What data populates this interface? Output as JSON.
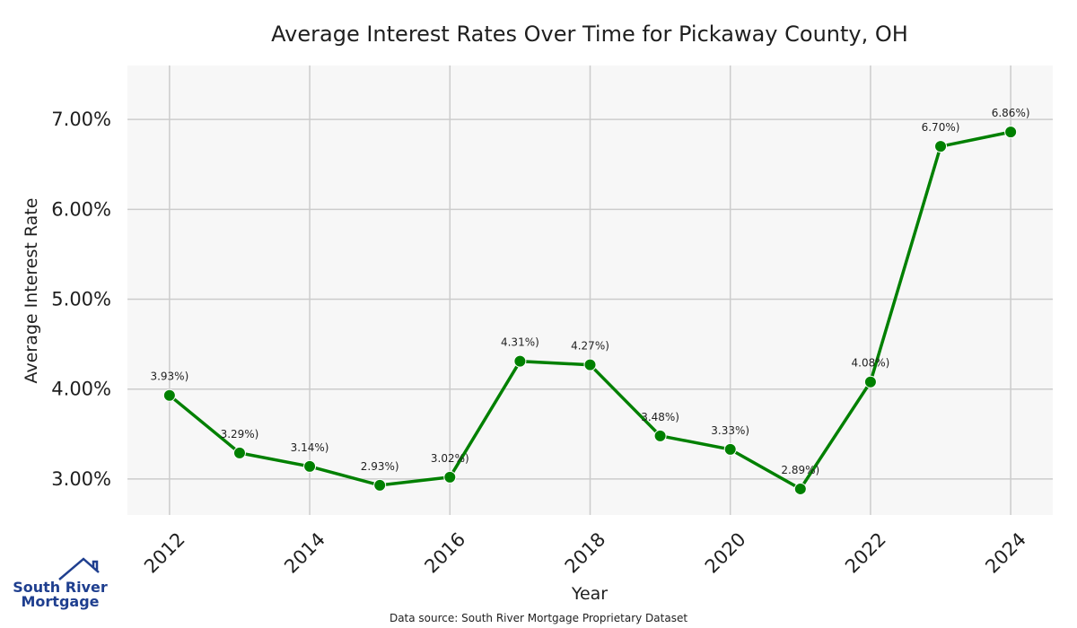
{
  "chart_data": {
    "type": "line",
    "title": "Average Interest Rates Over Time for Pickaway County, OH",
    "xlabel": "Year",
    "ylabel": "Average Interest Rate",
    "x": [
      2012,
      2013,
      2014,
      2015,
      2016,
      2017,
      2018,
      2019,
      2020,
      2021,
      2022,
      2023,
      2024
    ],
    "values": [
      3.93,
      3.29,
      3.14,
      2.93,
      3.02,
      4.31,
      4.27,
      3.48,
      3.33,
      2.89,
      4.08,
      6.7,
      6.86
    ],
    "data_labels": [
      "3.93%)",
      "3.29%)",
      "3.14%)",
      "2.93%)",
      "3.02%)",
      "4.31%)",
      "4.27%)",
      "3.48%)",
      "3.33%)",
      "2.89%)",
      "4.08%)",
      "6.70%)",
      "6.86%)"
    ],
    "x_ticks": [
      "2012",
      "2014",
      "2016",
      "2018",
      "2020",
      "2022",
      "2024"
    ],
    "y_ticks": [
      "3.00%",
      "4.00%",
      "5.00%",
      "6.00%",
      "7.00%"
    ],
    "ylim": [
      2.6,
      7.6
    ],
    "xlim": [
      2011.4,
      2024.6
    ],
    "grid": true,
    "background": "#f7f7f7",
    "gridline_color": "#cccccc",
    "line_color": "#008000",
    "marker_color": "#008000"
  },
  "footer": {
    "source": "Data source: South River Mortgage Proprietary Dataset",
    "logo_line1": "South River",
    "logo_line2": "Mortgage",
    "logo_color": "#1f3f8f"
  }
}
